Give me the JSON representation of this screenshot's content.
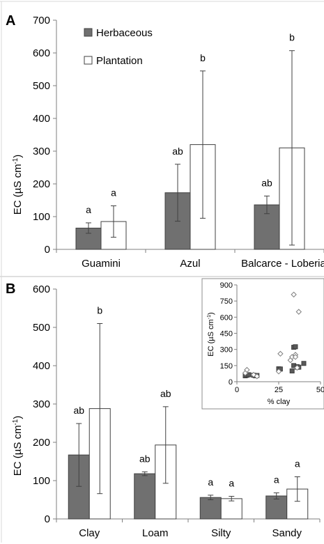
{
  "colors": {
    "herbaceous": "#707070",
    "plantation": "#ffffff",
    "axis": "#7f7f7f"
  },
  "chart_data": [
    {
      "panel": "A",
      "type": "bar",
      "categories": [
        "Guamini",
        "Azul",
        "Balcarce - Loberia"
      ],
      "series": [
        {
          "name": "Herbaceous",
          "values": [
            65,
            173,
            136
          ],
          "errors": [
            16,
            87,
            27
          ],
          "letters": [
            "a",
            "ab",
            "ab"
          ]
        },
        {
          "name": "Plantation",
          "values": [
            85,
            320,
            310
          ],
          "errors": [
            48,
            225,
            297
          ],
          "letters": [
            "a",
            "b",
            "b"
          ]
        }
      ],
      "ylabel": "EC (µS cm⁻¹)",
      "ylim": [
        0,
        700
      ],
      "yticks": [
        0,
        100,
        200,
        300,
        400,
        500,
        600,
        700
      ],
      "legend": "top-left"
    },
    {
      "panel": "B",
      "type": "bar",
      "categories": [
        "Clay",
        "Loam",
        "Silty",
        "Sandy"
      ],
      "series": [
        {
          "name": "Herbaceous",
          "values": [
            167,
            118,
            56,
            60
          ],
          "errors": [
            82,
            5,
            6,
            8
          ],
          "letters": [
            "ab",
            "ab",
            "a",
            "a"
          ]
        },
        {
          "name": "Plantation",
          "values": [
            288,
            193,
            53,
            78
          ],
          "errors": [
            222,
            100,
            6,
            32
          ],
          "letters": [
            "b",
            "ab",
            "a",
            "a"
          ]
        }
      ],
      "ylabel": "EC (µS cm⁻¹)",
      "ylim": [
        0,
        600
      ],
      "yticks": [
        0,
        100,
        200,
        300,
        400,
        500,
        600
      ]
    },
    {
      "panel": "B-inset",
      "type": "scatter",
      "xlabel": "% clay",
      "ylabel": "EC (µS cm⁻¹)",
      "xlim": [
        0,
        50
      ],
      "ylim": [
        0,
        900
      ],
      "xticks": [
        "0",
        "25",
        "50"
      ],
      "yticks": [
        0,
        150,
        300,
        450,
        600,
        750,
        900
      ],
      "series": [
        {
          "name": "Herbaceous",
          "x": [
            5,
            6,
            7,
            10,
            11,
            12,
            25,
            26,
            33,
            34,
            34,
            35,
            36,
            36,
            37,
            40
          ],
          "y": [
            55,
            60,
            65,
            60,
            55,
            58,
            120,
            118,
            100,
            150,
            320,
            325,
            140,
            135,
            135,
            170
          ]
        },
        {
          "name": "Plantation",
          "x": [
            5,
            6,
            10,
            12,
            25,
            26,
            32,
            33,
            34,
            35,
            35,
            36,
            37
          ],
          "y": [
            80,
            110,
            65,
            50,
            95,
            260,
            200,
            230,
            810,
            250,
            230,
            130,
            650
          ]
        }
      ]
    }
  ]
}
